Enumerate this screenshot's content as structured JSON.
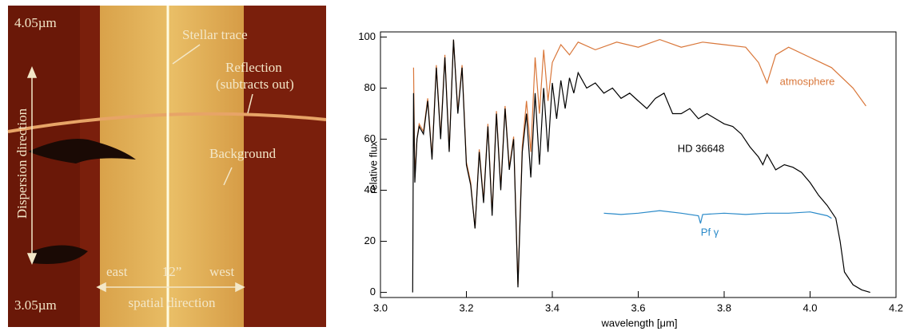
{
  "image_panel": {
    "top_wavelength": "4.05µm",
    "bottom_wavelength": "3.05µm",
    "stellar_trace": "Stellar trace",
    "reflection": "Reflection",
    "reflection_note": "(subtracts out)",
    "background": "Background",
    "dispersion": "Dispersion direction",
    "east": "east",
    "width": "12”",
    "west": "west",
    "spatial": "spatial direction"
  },
  "chart_data": {
    "type": "line",
    "xlabel": "wavelength [μm]",
    "ylabel": "relative flux",
    "xlim": [
      3.0,
      4.2
    ],
    "ylim": [
      -2,
      102
    ],
    "xticks": [
      {
        "value": 3.0,
        "label": "3.0"
      },
      3.2,
      3.4,
      3.6,
      3.8,
      {
        "value": 4.0,
        "label": "4.0"
      },
      4.2
    ],
    "yticks": [
      0,
      20,
      40,
      60,
      80,
      100
    ],
    "series": [
      {
        "name": "atmosphere",
        "color": "#d9773a",
        "x": [
          3.077,
          3.08,
          3.085,
          3.09,
          3.1,
          3.11,
          3.12,
          3.13,
          3.14,
          3.15,
          3.16,
          3.17,
          3.18,
          3.19,
          3.2,
          3.21,
          3.22,
          3.23,
          3.24,
          3.25,
          3.26,
          3.27,
          3.28,
          3.29,
          3.3,
          3.31,
          3.32,
          3.33,
          3.34,
          3.35,
          3.36,
          3.37,
          3.38,
          3.39,
          3.4,
          3.42,
          3.44,
          3.46,
          3.5,
          3.55,
          3.6,
          3.65,
          3.7,
          3.75,
          3.8,
          3.85,
          3.88,
          3.9,
          3.92,
          3.95,
          4.0,
          4.05,
          4.1,
          4.13
        ],
        "values": [
          88,
          45,
          60,
          66,
          63,
          76,
          53,
          89,
          61,
          93,
          56,
          99,
          71,
          89,
          51,
          43,
          25,
          56,
          36,
          66,
          31,
          71,
          41,
          73,
          49,
          61,
          3,
          57,
          75,
          55,
          92,
          70,
          95,
          75,
          90,
          97,
          93,
          98,
          95,
          98,
          96,
          99,
          96,
          98,
          97,
          96,
          90,
          82,
          93,
          96,
          92,
          88,
          80,
          73
        ]
      },
      {
        "name": "HD 36648",
        "color": "#000000",
        "x": [
          3.075,
          3.077,
          3.08,
          3.085,
          3.09,
          3.1,
          3.11,
          3.12,
          3.13,
          3.14,
          3.15,
          3.16,
          3.17,
          3.18,
          3.19,
          3.2,
          3.21,
          3.22,
          3.23,
          3.24,
          3.25,
          3.26,
          3.27,
          3.28,
          3.29,
          3.3,
          3.31,
          3.32,
          3.33,
          3.34,
          3.35,
          3.36,
          3.37,
          3.38,
          3.39,
          3.4,
          3.41,
          3.42,
          3.43,
          3.44,
          3.45,
          3.46,
          3.48,
          3.5,
          3.52,
          3.54,
          3.56,
          3.58,
          3.6,
          3.62,
          3.64,
          3.66,
          3.68,
          3.7,
          3.72,
          3.74,
          3.76,
          3.78,
          3.8,
          3.82,
          3.84,
          3.86,
          3.88,
          3.89,
          3.9,
          3.92,
          3.94,
          3.96,
          3.98,
          4.0,
          4.02,
          4.04,
          4.06,
          4.07,
          4.08,
          4.1,
          4.12,
          4.14
        ],
        "values": [
          0,
          78,
          43,
          60,
          65,
          62,
          75,
          52,
          88,
          60,
          92,
          55,
          99,
          70,
          88,
          50,
          42,
          25,
          55,
          35,
          65,
          30,
          70,
          40,
          72,
          48,
          60,
          2,
          55,
          70,
          45,
          78,
          50,
          80,
          55,
          82,
          68,
          83,
          72,
          84,
          78,
          86,
          80,
          82,
          78,
          80,
          76,
          78,
          75,
          72,
          76,
          78,
          70,
          70,
          72,
          68,
          70,
          68,
          66,
          65,
          62,
          57,
          53,
          50,
          54,
          48,
          50,
          49,
          47,
          43,
          38,
          34,
          29,
          20,
          8,
          3,
          1,
          0
        ]
      },
      {
        "name": "Pf γ",
        "color": "#2a8ac9",
        "x": [
          3.52,
          3.56,
          3.6,
          3.65,
          3.7,
          3.74,
          3.745,
          3.75,
          3.8,
          3.85,
          3.9,
          3.95,
          4.0,
          4.04,
          4.05
        ],
        "values": [
          31,
          30.5,
          31,
          32,
          31,
          30,
          27,
          30.5,
          31,
          30.5,
          31,
          31,
          31.5,
          30,
          29
        ]
      }
    ]
  }
}
